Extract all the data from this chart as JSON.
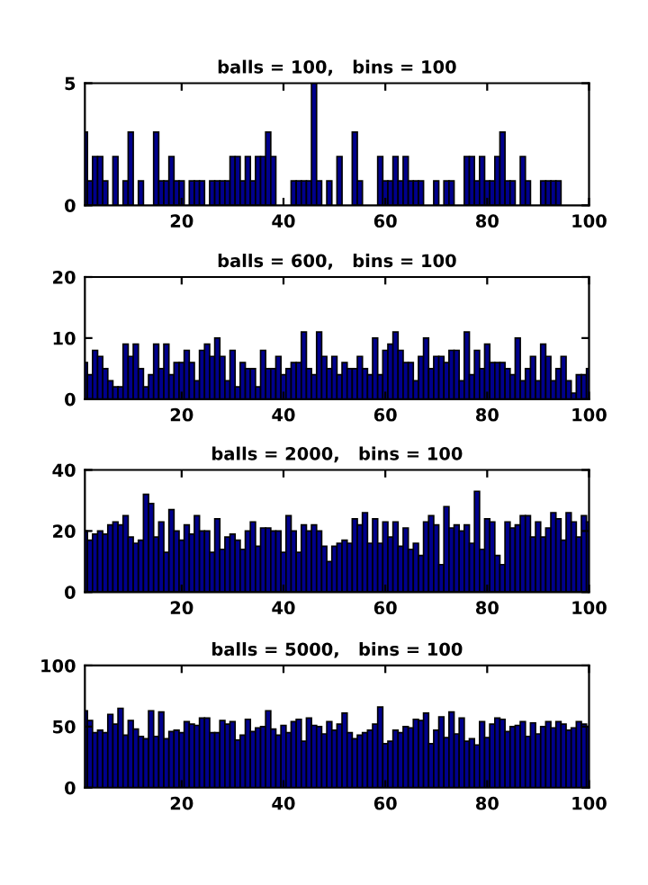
{
  "chart_data": [
    {
      "type": "histogram",
      "title": "balls = 100,   bins = 100",
      "color": "#00008c",
      "bins": [
        0.5,
        1.5,
        2.5,
        3.5,
        4.5,
        5.5,
        6.5,
        7.5,
        8.5,
        9.5,
        10.5,
        11.5,
        12.5,
        13.5,
        14.5,
        15.5,
        16.5,
        17.5,
        18.5,
        19.5,
        20.5,
        21.5,
        22.5,
        23.5,
        24.5,
        25.5,
        26.5,
        27.5,
        28.5,
        29.5,
        30.5,
        31.5,
        32.5,
        33.5,
        34.5,
        35.5,
        36.5,
        37.5,
        38.5,
        39.5,
        40.5,
        41.5,
        42.5,
        43.5,
        44.5,
        45.5,
        46.5,
        47.5,
        48.5,
        49.5,
        50.5,
        51.5,
        52.5,
        53.5,
        54.5,
        55.5,
        56.5,
        57.5,
        58.5,
        59.5,
        60.5,
        61.5,
        62.5,
        63.5,
        64.5,
        65.5,
        66.5,
        67.5,
        68.5,
        69.5,
        70.5,
        71.5,
        72.5,
        73.5,
        74.5,
        75.5,
        76.5,
        77.5,
        78.5,
        79.5,
        80.5,
        81.5,
        82.5,
        83.5,
        84.5,
        85.5,
        86.5,
        87.5,
        88.5,
        89.5,
        90.5,
        91.5,
        92.5,
        93.5,
        94.5,
        95.5,
        96.5,
        97.5,
        98.5,
        99.5,
        100.5
      ],
      "values": [
        3,
        1,
        2,
        2,
        1,
        0,
        2,
        0,
        1,
        3,
        0,
        1,
        0,
        0,
        3,
        1,
        1,
        2,
        1,
        1,
        0,
        1,
        1,
        1,
        0,
        1,
        1,
        1,
        1,
        2,
        2,
        1,
        2,
        1,
        2,
        2,
        3,
        2,
        0,
        0,
        0,
        1,
        1,
        1,
        1,
        5,
        1,
        0,
        1,
        0,
        2,
        0,
        0,
        3,
        1,
        0,
        0,
        0,
        2,
        1,
        1,
        2,
        1,
        2,
        1,
        1,
        1,
        0,
        0,
        1,
        0,
        1,
        1,
        0,
        0,
        2,
        2,
        1,
        2,
        1,
        1,
        2,
        3,
        1,
        1,
        0,
        2,
        1,
        0,
        0,
        1,
        1,
        1,
        1,
        0,
        0,
        0,
        0,
        0,
        0
      ],
      "xlim": [
        1,
        100
      ],
      "xticks": [
        20,
        40,
        60,
        80,
        100
      ],
      "ylim": [
        0,
        5
      ],
      "yticks": [
        0,
        5
      ],
      "grid": false,
      "legend": false
    },
    {
      "type": "histogram",
      "title": "balls = 600,   bins = 100",
      "color": "#00008c",
      "bins": [
        0.5,
        1.5,
        2.5,
        3.5,
        4.5,
        5.5,
        6.5,
        7.5,
        8.5,
        9.5,
        10.5,
        11.5,
        12.5,
        13.5,
        14.5,
        15.5,
        16.5,
        17.5,
        18.5,
        19.5,
        20.5,
        21.5,
        22.5,
        23.5,
        24.5,
        25.5,
        26.5,
        27.5,
        28.5,
        29.5,
        30.5,
        31.5,
        32.5,
        33.5,
        34.5,
        35.5,
        36.5,
        37.5,
        38.5,
        39.5,
        40.5,
        41.5,
        42.5,
        43.5,
        44.5,
        45.5,
        46.5,
        47.5,
        48.5,
        49.5,
        50.5,
        51.5,
        52.5,
        53.5,
        54.5,
        55.5,
        56.5,
        57.5,
        58.5,
        59.5,
        60.5,
        61.5,
        62.5,
        63.5,
        64.5,
        65.5,
        66.5,
        67.5,
        68.5,
        69.5,
        70.5,
        71.5,
        72.5,
        73.5,
        74.5,
        75.5,
        76.5,
        77.5,
        78.5,
        79.5,
        80.5,
        81.5,
        82.5,
        83.5,
        84.5,
        85.5,
        86.5,
        87.5,
        88.5,
        89.5,
        90.5,
        91.5,
        92.5,
        93.5,
        94.5,
        95.5,
        96.5,
        97.5,
        98.5,
        99.5,
        100.5
      ],
      "values": [
        6,
        4,
        8,
        7,
        5,
        3,
        2,
        2,
        9,
        7,
        9,
        5,
        2,
        4,
        9,
        5,
        9,
        4,
        6,
        6,
        8,
        6,
        3,
        8,
        9,
        7,
        10,
        7,
        3,
        8,
        2,
        6,
        5,
        5,
        2,
        8,
        5,
        5,
        7,
        4,
        5,
        6,
        6,
        11,
        5,
        4,
        11,
        7,
        5,
        7,
        4,
        6,
        5,
        5,
        7,
        5,
        4,
        10,
        4,
        8,
        9,
        11,
        8,
        6,
        6,
        3,
        7,
        10,
        5,
        7,
        7,
        6,
        8,
        8,
        3,
        11,
        4,
        8,
        5,
        9,
        6,
        6,
        6,
        5,
        4,
        10,
        3,
        5,
        7,
        3,
        9,
        7,
        3,
        5,
        7,
        3,
        1,
        4,
        4,
        5
      ],
      "xlim": [
        1,
        100
      ],
      "xticks": [
        20,
        40,
        60,
        80,
        100
      ],
      "ylim": [
        0,
        20
      ],
      "yticks": [
        0,
        10,
        20
      ],
      "grid": false,
      "legend": false
    },
    {
      "type": "histogram",
      "title": "balls = 2000,   bins = 100",
      "color": "#00008c",
      "bins": [
        0.5,
        1.5,
        2.5,
        3.5,
        4.5,
        5.5,
        6.5,
        7.5,
        8.5,
        9.5,
        10.5,
        11.5,
        12.5,
        13.5,
        14.5,
        15.5,
        16.5,
        17.5,
        18.5,
        19.5,
        20.5,
        21.5,
        22.5,
        23.5,
        24.5,
        25.5,
        26.5,
        27.5,
        28.5,
        29.5,
        30.5,
        31.5,
        32.5,
        33.5,
        34.5,
        35.5,
        36.5,
        37.5,
        38.5,
        39.5,
        40.5,
        41.5,
        42.5,
        43.5,
        44.5,
        45.5,
        46.5,
        47.5,
        48.5,
        49.5,
        50.5,
        51.5,
        52.5,
        53.5,
        54.5,
        55.5,
        56.5,
        57.5,
        58.5,
        59.5,
        60.5,
        61.5,
        62.5,
        63.5,
        64.5,
        65.5,
        66.5,
        67.5,
        68.5,
        69.5,
        70.5,
        71.5,
        72.5,
        73.5,
        74.5,
        75.5,
        76.5,
        77.5,
        78.5,
        79.5,
        80.5,
        81.5,
        82.5,
        83.5,
        84.5,
        85.5,
        86.5,
        87.5,
        88.5,
        89.5,
        90.5,
        91.5,
        92.5,
        93.5,
        94.5,
        95.5,
        96.5,
        97.5,
        98.5,
        99.5,
        100.5
      ],
      "values": [
        20,
        17,
        19,
        20,
        19,
        22,
        23,
        22,
        25,
        18,
        16,
        17,
        32,
        29,
        18,
        23,
        13,
        27,
        20,
        17,
        22,
        19,
        25,
        20,
        20,
        13,
        24,
        14,
        18,
        19,
        17,
        14,
        20,
        23,
        15,
        21,
        21,
        20,
        20,
        13,
        25,
        20,
        13,
        22,
        20,
        22,
        20,
        15,
        10,
        15,
        16,
        17,
        16,
        24,
        22,
        26,
        16,
        24,
        16,
        23,
        18,
        23,
        15,
        21,
        14,
        16,
        12,
        23,
        25,
        22,
        9,
        28,
        21,
        22,
        20,
        22,
        16,
        33,
        14,
        24,
        23,
        12,
        9,
        23,
        21,
        22,
        25,
        25,
        18,
        23,
        18,
        21,
        26,
        24,
        17,
        26,
        23,
        18,
        25,
        23
      ],
      "xlim": [
        1,
        100
      ],
      "xticks": [
        20,
        40,
        60,
        80,
        100
      ],
      "ylim": [
        0,
        40
      ],
      "yticks": [
        0,
        20,
        40
      ],
      "grid": false,
      "legend": false
    },
    {
      "type": "histogram",
      "title": "balls = 5000,   bins = 100",
      "color": "#00008c",
      "bins": [
        0.5,
        1.5,
        2.5,
        3.5,
        4.5,
        5.5,
        6.5,
        7.5,
        8.5,
        9.5,
        10.5,
        11.5,
        12.5,
        13.5,
        14.5,
        15.5,
        16.5,
        17.5,
        18.5,
        19.5,
        20.5,
        21.5,
        22.5,
        23.5,
        24.5,
        25.5,
        26.5,
        27.5,
        28.5,
        29.5,
        30.5,
        31.5,
        32.5,
        33.5,
        34.5,
        35.5,
        36.5,
        37.5,
        38.5,
        39.5,
        40.5,
        41.5,
        42.5,
        43.5,
        44.5,
        45.5,
        46.5,
        47.5,
        48.5,
        49.5,
        50.5,
        51.5,
        52.5,
        53.5,
        54.5,
        55.5,
        56.5,
        57.5,
        58.5,
        59.5,
        60.5,
        61.5,
        62.5,
        63.5,
        64.5,
        65.5,
        66.5,
        67.5,
        68.5,
        69.5,
        70.5,
        71.5,
        72.5,
        73.5,
        74.5,
        75.5,
        76.5,
        77.5,
        78.5,
        79.5,
        80.5,
        81.5,
        82.5,
        83.5,
        84.5,
        85.5,
        86.5,
        87.5,
        88.5,
        89.5,
        90.5,
        91.5,
        92.5,
        93.5,
        94.5,
        95.5,
        96.5,
        97.5,
        98.5,
        99.5,
        100.5
      ],
      "values": [
        63,
        55,
        45,
        47,
        45,
        60,
        52,
        65,
        43,
        55,
        48,
        42,
        40,
        63,
        42,
        62,
        40,
        46,
        47,
        45,
        54,
        52,
        51,
        57,
        57,
        45,
        45,
        55,
        52,
        54,
        39,
        43,
        56,
        46,
        49,
        50,
        63,
        48,
        43,
        51,
        45,
        54,
        56,
        38,
        57,
        51,
        50,
        44,
        54,
        47,
        52,
        61,
        45,
        40,
        43,
        45,
        47,
        52,
        66,
        36,
        38,
        47,
        45,
        50,
        49,
        56,
        55,
        61,
        36,
        47,
        58,
        41,
        62,
        44,
        57,
        38,
        40,
        35,
        54,
        41,
        52,
        57,
        56,
        46,
        50,
        51,
        54,
        42,
        53,
        44,
        50,
        54,
        49,
        54,
        52,
        47,
        49,
        54,
        52,
        50
      ],
      "xlim": [
        1,
        100
      ],
      "xticks": [
        20,
        40,
        60,
        80,
        100
      ],
      "ylim": [
        0,
        100
      ],
      "yticks": [
        0,
        50,
        100
      ],
      "grid": false,
      "legend": false
    }
  ]
}
